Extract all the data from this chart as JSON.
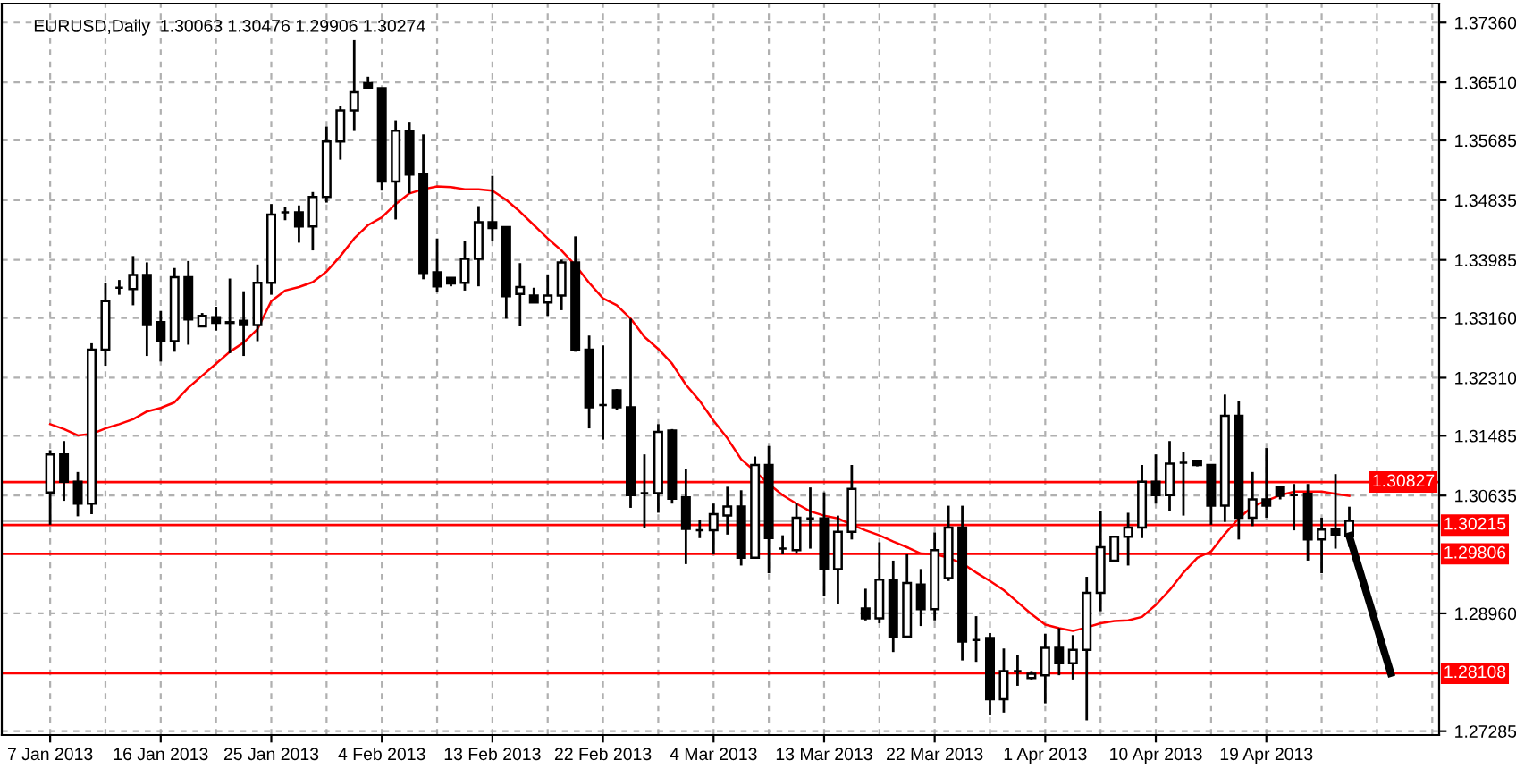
{
  "chart_data": {
    "type": "candlestick",
    "title": "EURUSD,Daily  1.30063 1.30476 1.29906 1.30274",
    "categories": [
      "7 Jan 2013",
      null,
      null,
      null,
      null,
      null,
      null,
      null,
      "16 Jan 2013",
      null,
      null,
      null,
      null,
      null,
      null,
      null,
      "25 Jan 2013",
      null,
      null,
      null,
      null,
      null,
      null,
      null,
      "4 Feb 2013",
      null,
      null,
      null,
      null,
      null,
      null,
      null,
      "13 Feb 2013",
      null,
      null,
      null,
      null,
      null,
      null,
      null,
      "22 Feb 2013",
      null,
      null,
      null,
      null,
      null,
      null,
      null,
      "4 Mar 2013",
      null,
      null,
      null,
      null,
      null,
      null,
      null,
      "13 Mar 2013",
      null,
      null,
      null,
      null,
      null,
      null,
      null,
      "22 Mar 2013",
      null,
      null,
      null,
      null,
      null,
      null,
      null,
      "1 Apr 2013",
      null,
      null,
      null,
      null,
      null,
      null,
      null,
      "10 Apr 2013",
      null,
      null,
      null,
      null,
      null,
      null,
      null,
      "19 Apr 2013",
      null,
      null,
      null,
      null,
      null,
      null,
      null,
      null,
      null,
      null,
      null,
      null
    ],
    "ohlc": [
      [
        1.3068,
        1.3128,
        1.3022,
        1.3122
      ],
      [
        1.3122,
        1.3141,
        1.3056,
        1.3083
      ],
      [
        1.3083,
        1.3097,
        1.3034,
        1.3052
      ],
      [
        1.3052,
        1.328,
        1.3037,
        1.3271
      ],
      [
        1.3271,
        1.3366,
        1.3248,
        1.334
      ],
      [
        1.3359,
        1.337,
        1.3349,
        1.3359
      ],
      [
        1.3357,
        1.3404,
        1.3334,
        1.3377
      ],
      [
        1.3377,
        1.3395,
        1.3262,
        1.3306
      ],
      [
        1.331,
        1.3326,
        1.3254,
        1.3283
      ],
      [
        1.3283,
        1.3387,
        1.3268,
        1.3374
      ],
      [
        1.3374,
        1.3397,
        1.3278,
        1.3314
      ],
      [
        1.3304,
        1.3323,
        1.3304,
        1.3319
      ],
      [
        1.3317,
        1.3332,
        1.3298,
        1.3309
      ],
      [
        1.331,
        1.3372,
        1.3266,
        1.3309
      ],
      [
        1.3312,
        1.3354,
        1.3262,
        1.3306
      ],
      [
        1.3306,
        1.3392,
        1.3283,
        1.3366
      ],
      [
        1.3366,
        1.3478,
        1.3349,
        1.3463
      ],
      [
        1.3466,
        1.3474,
        1.3455,
        1.3466
      ],
      [
        1.3466,
        1.3476,
        1.3423,
        1.3446
      ],
      [
        1.3446,
        1.3495,
        1.3412,
        1.3488
      ],
      [
        1.3488,
        1.3588,
        1.348,
        1.3567
      ],
      [
        1.3567,
        1.3617,
        1.3541,
        1.3611
      ],
      [
        1.3611,
        1.3711,
        1.3583,
        1.3637
      ],
      [
        1.365,
        1.3659,
        1.3643,
        1.3643
      ],
      [
        1.3643,
        1.3643,
        1.3497,
        1.351
      ],
      [
        1.351,
        1.3597,
        1.3456,
        1.3582
      ],
      [
        1.3582,
        1.3595,
        1.3493,
        1.352
      ],
      [
        1.3521,
        1.3577,
        1.3371,
        1.338
      ],
      [
        1.3381,
        1.3429,
        1.3353,
        1.3361
      ],
      [
        1.3373,
        1.3373,
        1.3361,
        1.3365
      ],
      [
        1.3366,
        1.3426,
        1.3355,
        1.34
      ],
      [
        1.34,
        1.3475,
        1.3361,
        1.3452
      ],
      [
        1.3452,
        1.3518,
        1.3425,
        1.3444
      ],
      [
        1.3445,
        1.3445,
        1.3315,
        1.3347
      ],
      [
        1.335,
        1.3394,
        1.3304,
        1.336
      ],
      [
        1.3348,
        1.3359,
        1.3338,
        1.3338
      ],
      [
        1.3338,
        1.3378,
        1.3319,
        1.3348
      ],
      [
        1.3348,
        1.3399,
        1.3327,
        1.3395
      ],
      [
        1.3395,
        1.3432,
        1.3268,
        1.327
      ],
      [
        1.3271,
        1.3291,
        1.3159,
        1.3189
      ],
      [
        1.3192,
        1.3277,
        1.3143,
        1.3192
      ],
      [
        1.3213,
        1.3215,
        1.3185,
        1.3189
      ],
      [
        1.3189,
        1.3315,
        1.3046,
        1.3064
      ],
      [
        1.3067,
        1.3122,
        1.3017,
        1.3067
      ],
      [
        1.3067,
        1.3165,
        1.3039,
        1.3154
      ],
      [
        1.3156,
        1.3158,
        1.3052,
        1.3059
      ],
      [
        1.3061,
        1.3101,
        1.2966,
        1.3016
      ],
      [
        1.3014,
        1.3029,
        1.3003,
        1.3014
      ],
      [
        1.3014,
        1.3052,
        1.298,
        1.3037
      ],
      [
        1.3035,
        1.3076,
        1.3008,
        1.3048
      ],
      [
        1.3048,
        1.3071,
        1.2964,
        1.2975
      ],
      [
        1.2975,
        1.3119,
        1.2974,
        1.3107
      ],
      [
        1.3107,
        1.3134,
        1.2953,
        1.3003
      ],
      [
        1.2988,
        1.3007,
        1.298,
        1.2988
      ],
      [
        1.2986,
        1.3052,
        1.2982,
        1.3032
      ],
      [
        1.3031,
        1.3075,
        1.2988,
        1.3031
      ],
      [
        1.3031,
        1.3068,
        1.292,
        1.2959
      ],
      [
        1.2959,
        1.3035,
        1.2909,
        1.3012
      ],
      [
        1.3012,
        1.3107,
        1.3001,
        1.3073
      ],
      [
        1.2903,
        1.2931,
        1.2886,
        1.2889
      ],
      [
        1.2889,
        1.2997,
        1.2882,
        1.2944
      ],
      [
        1.2944,
        1.2971,
        1.2841,
        1.2863
      ],
      [
        1.2863,
        1.298,
        1.2861,
        1.2939
      ],
      [
        1.2937,
        1.2959,
        1.2878,
        1.2902
      ],
      [
        1.2902,
        1.3011,
        1.2886,
        1.2986
      ],
      [
        1.2946,
        1.3049,
        1.2942,
        1.3018
      ],
      [
        1.3018,
        1.3049,
        1.2829,
        1.2856
      ],
      [
        1.2858,
        1.2892,
        1.2827,
        1.2858
      ],
      [
        1.2861,
        1.2868,
        1.2751,
        1.2774
      ],
      [
        1.2774,
        1.2846,
        1.2755,
        1.2814
      ],
      [
        1.2814,
        1.2837,
        1.2793,
        1.2814
      ],
      [
        1.2804,
        1.2814,
        1.2802,
        1.281
      ],
      [
        1.2808,
        1.2867,
        1.2768,
        1.2847
      ],
      [
        1.2847,
        1.2875,
        1.2808,
        1.2825
      ],
      [
        1.2825,
        1.2865,
        1.2802,
        1.2844
      ],
      [
        1.2844,
        1.2948,
        1.2744,
        1.2925
      ],
      [
        1.2925,
        1.3041,
        1.2899,
        1.299
      ],
      [
        1.2971,
        1.3005,
        1.297,
        1.3005
      ],
      [
        1.3005,
        1.3039,
        1.2964,
        1.3018
      ],
      [
        1.3018,
        1.3107,
        1.3003,
        1.3083
      ],
      [
        1.3083,
        1.3122,
        1.3052,
        1.3064
      ],
      [
        1.3064,
        1.3141,
        1.3041,
        1.3109
      ],
      [
        1.311,
        1.3126,
        1.3035,
        1.311
      ],
      [
        1.3113,
        1.3113,
        1.3105,
        1.3107
      ],
      [
        1.3107,
        1.3107,
        1.3022,
        1.3049
      ],
      [
        1.3049,
        1.3207,
        1.3026,
        1.3177
      ],
      [
        1.3177,
        1.3198,
        1.3001,
        1.3032
      ],
      [
        1.3032,
        1.3097,
        1.302,
        1.3058
      ],
      [
        1.3058,
        1.3131,
        1.3032,
        1.3049
      ],
      [
        1.3076,
        1.3077,
        1.3058,
        1.3063
      ],
      [
        1.3064,
        1.308,
        1.3014,
        1.3064
      ],
      [
        1.3066,
        1.308,
        1.2971,
        1.3001
      ],
      [
        1.3001,
        1.3032,
        1.2953,
        1.3015
      ],
      [
        1.3015,
        1.3094,
        1.2988,
        1.3008
      ],
      [
        1.30063,
        1.30476,
        1.29906,
        1.30274
      ],
      null,
      null,
      null,
      null,
      null,
      null
    ],
    "series": [
      {
        "type": "line",
        "color": "#ff0000",
        "values": [
          1.3165,
          1.3158,
          1.3149,
          1.3151,
          1.3159,
          1.3165,
          1.3172,
          1.3183,
          1.3188,
          1.3196,
          1.3217,
          1.3234,
          1.3251,
          1.3268,
          1.3281,
          1.33,
          1.334,
          1.3355,
          1.336,
          1.3367,
          1.3382,
          1.3404,
          1.3429,
          1.3448,
          1.3459,
          1.3478,
          1.3493,
          1.3499,
          1.3503,
          1.3502,
          1.3499,
          1.3499,
          1.3497,
          1.3484,
          1.3467,
          1.3448,
          1.3429,
          1.3412,
          1.3391,
          1.3366,
          1.3344,
          1.3334,
          1.3315,
          1.3289,
          1.3272,
          1.3251,
          1.3221,
          1.3198,
          1.317,
          1.3145,
          1.3115,
          1.3098,
          1.308,
          1.3064,
          1.3052,
          1.3041,
          1.3035,
          1.3031,
          1.3022,
          1.3014,
          1.3007,
          1.2998,
          1.299,
          1.2981,
          1.298,
          1.2975,
          1.2967,
          1.2954,
          1.2942,
          1.2929,
          1.2912,
          1.2895,
          1.288,
          1.2875,
          1.2871,
          1.2876,
          1.2882,
          1.2885,
          1.2886,
          1.2891,
          1.2908,
          1.2929,
          1.2954,
          1.2975,
          1.2984,
          1.3009,
          1.3031,
          1.3048,
          1.3056,
          1.3064,
          1.3069,
          1.3069,
          1.3069,
          1.3066,
          1.3063,
          null,
          null,
          null,
          null,
          null,
          null
        ]
      },
      {
        "type": "line",
        "color": "#000000",
        "values": [
          null,
          null,
          null,
          null,
          null,
          null,
          null,
          null,
          null,
          null,
          null,
          null,
          null,
          null,
          null,
          null,
          null,
          null,
          null,
          null,
          null,
          null,
          null,
          null,
          null,
          null,
          null,
          null,
          null,
          null,
          null,
          null,
          null,
          null,
          null,
          null,
          null,
          null,
          null,
          null,
          null,
          null,
          null,
          null,
          null,
          null,
          null,
          null,
          null,
          null,
          null,
          null,
          null,
          null,
          null,
          null,
          null,
          null,
          null,
          null,
          null,
          null,
          null,
          null,
          null,
          null,
          null,
          null,
          null,
          null,
          null,
          null,
          null,
          null,
          null,
          null,
          null,
          null,
          null,
          null,
          null,
          null,
          null,
          null,
          null,
          null,
          null,
          null,
          null,
          null,
          null,
          null,
          null,
          null,
          1.3006,
          null,
          null,
          1.2811,
          null,
          null,
          null
        ]
      }
    ],
    "ylim": [
      1.2723,
      1.3763
    ],
    "yticks": [
      {
        "value": 1.27285,
        "label": "1.27285"
      },
      {
        "value": 1.2896,
        "label": "1.28960"
      },
      {
        "value": 1.30635,
        "label": "1.30635"
      },
      {
        "value": 1.31485,
        "label": "1.31485"
      },
      {
        "value": 1.3231,
        "label": "1.32310"
      },
      {
        "value": 1.3316,
        "label": "1.33160"
      },
      {
        "value": 1.33985,
        "label": "1.33985"
      },
      {
        "value": 1.34835,
        "label": "1.34835"
      },
      {
        "value": 1.35685,
        "label": "1.35685"
      },
      {
        "value": 1.3651,
        "label": "1.36510"
      },
      {
        "value": 1.3736,
        "label": "1.37360"
      }
    ],
    "ref_lines": [
      {
        "axis": "y",
        "value": 1.30274,
        "color": "#c0c0c0"
      },
      {
        "axis": "y",
        "value": 1.30827,
        "label": "1.30827",
        "color": "#ff0000"
      },
      {
        "axis": "y",
        "value": 1.30215,
        "label": "1.30215",
        "color": "#ff0000"
      },
      {
        "axis": "y",
        "value": 1.29806,
        "label": "1.29806",
        "color": "#ff0000"
      },
      {
        "axis": "y",
        "value": 1.28108,
        "label": "1.28108",
        "color": "#ff0000"
      }
    ],
    "grid": true
  }
}
